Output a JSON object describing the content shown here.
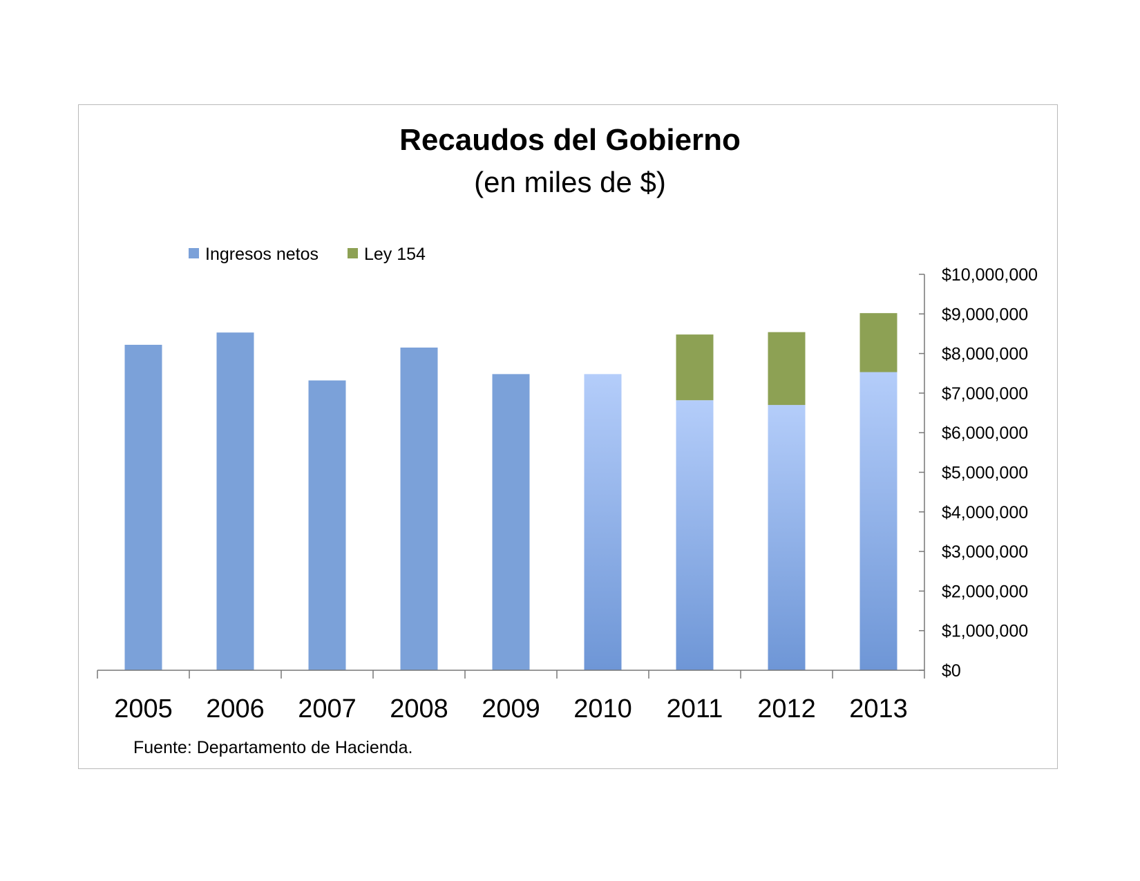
{
  "chart_data": {
    "type": "bar",
    "stacked": true,
    "title": "Recaudos del Gobierno",
    "subtitle": "(en miles de $)",
    "xlabel": "",
    "ylabel": "",
    "categories": [
      "2005",
      "2006",
      "2007",
      "2008",
      "2009",
      "2010",
      "2011",
      "2012",
      "2013"
    ],
    "series": [
      {
        "name": "Ingresos netos",
        "color": "#7ba1d9",
        "values": [
          8220000,
          8530000,
          7320000,
          8150000,
          7480000,
          7480000,
          6820000,
          6700000,
          7530000
        ]
      },
      {
        "name": "Ley 154",
        "color": "#8da154",
        "values": [
          0,
          0,
          0,
          0,
          0,
          0,
          1660000,
          1840000,
          1490000
        ]
      }
    ],
    "ylim": [
      0,
      10000000
    ],
    "y_ticks": [
      "$0",
      "$1,000,000",
      "$2,000,000",
      "$3,000,000",
      "$4,000,000",
      "$5,000,000",
      "$6,000,000",
      "$7,000,000",
      "$8,000,000",
      "$9,000,000",
      "$10,000,000"
    ],
    "y_axis_side": "right",
    "legend_position": "top-left",
    "grid": false,
    "source_note": "Fuente: Departamento de Hacienda."
  }
}
